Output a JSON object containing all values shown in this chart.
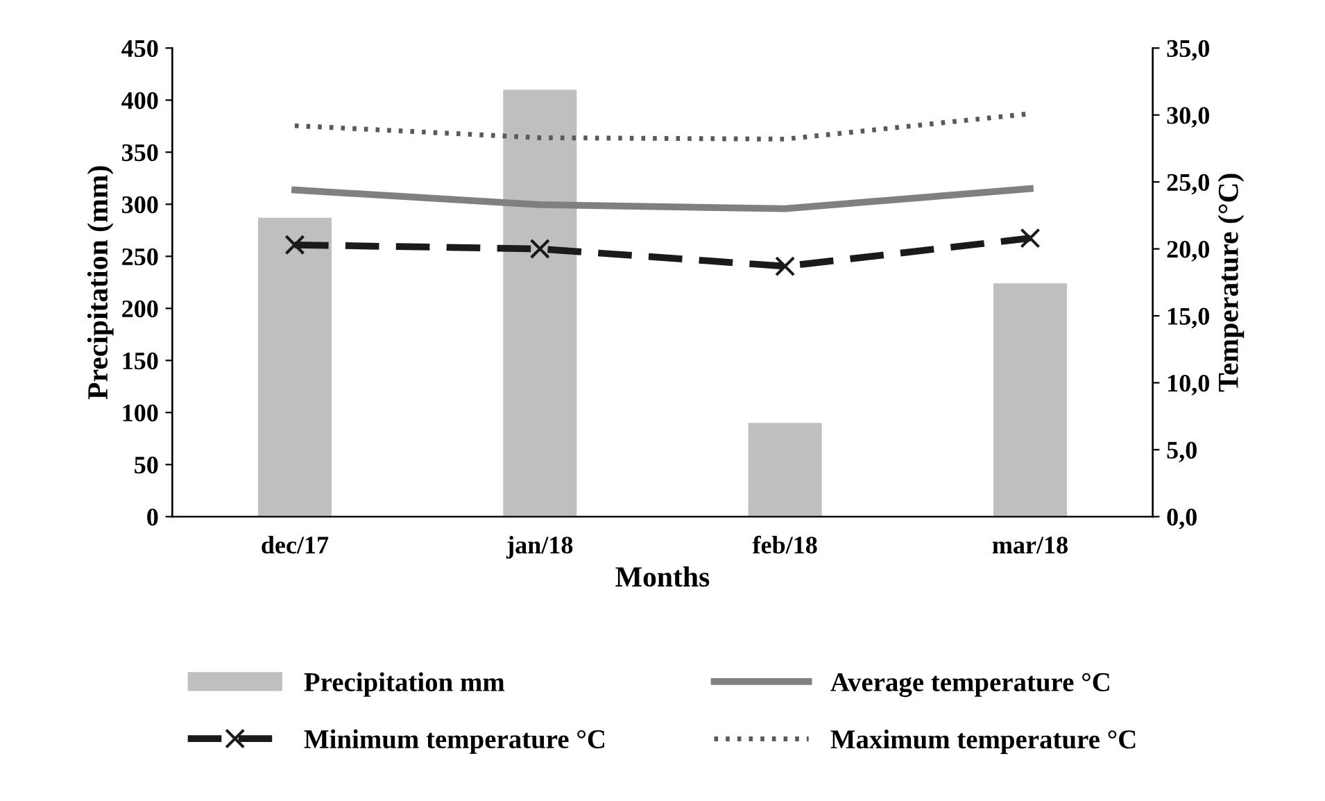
{
  "chart_data": {
    "type": "bar",
    "xlabel": "Months",
    "ylabel": "Precipitation (mm)",
    "y2label": "Temperature (°C)",
    "categories": [
      "dec/17",
      "jan/18",
      "feb/18",
      "mar/18"
    ],
    "series": [
      {
        "name": "Precipitation mm",
        "color": "#bfbfbf",
        "values": [
          287,
          410,
          90,
          224
        ]
      },
      {
        "name": "Average temperature °C",
        "type": "line",
        "axis": "y2",
        "color": "#808080",
        "line_style": "solid",
        "marker": "none",
        "values": [
          24.4,
          23.3,
          23.0,
          24.5
        ]
      },
      {
        "name": "Minimum temperature °C",
        "type": "line",
        "axis": "y2",
        "color": "#1a1a1a",
        "line_style": "dashed",
        "marker": "cross",
        "values": [
          20.3,
          20.0,
          18.7,
          20.8
        ]
      },
      {
        "name": "Maximum temperature °C",
        "type": "line",
        "axis": "y2",
        "color": "#595959",
        "line_style": "dotted",
        "marker": "none",
        "values": [
          29.2,
          28.3,
          28.2,
          30.1
        ]
      }
    ],
    "ylim": [
      0,
      450
    ],
    "yticks": [
      0,
      50,
      100,
      150,
      200,
      250,
      300,
      350,
      400,
      450
    ],
    "y2lim": [
      0,
      35
    ],
    "y2ticks": [
      {
        "value": 0,
        "label": "0,0"
      },
      {
        "value": 5,
        "label": "5,0"
      },
      {
        "value": 10,
        "label": "10,0"
      },
      {
        "value": 15,
        "label": "15,0"
      },
      {
        "value": 20,
        "label": "20,0"
      },
      {
        "value": 25,
        "label": "25,0"
      },
      {
        "value": 30,
        "label": "30,0"
      },
      {
        "value": 35,
        "label": "35,0"
      }
    ],
    "grid": false,
    "legend": "bottom"
  }
}
